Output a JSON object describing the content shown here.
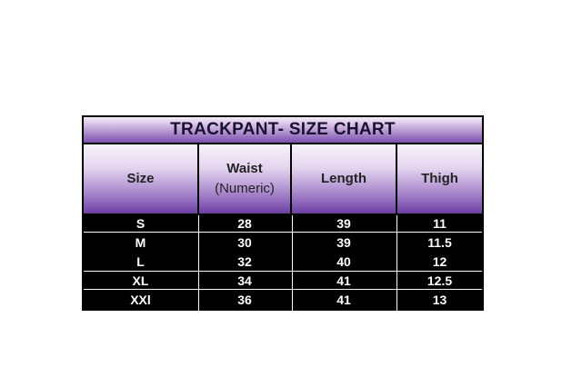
{
  "title": "TRACKPANT- SIZE CHART",
  "headers": [
    "Size",
    "Waist\n(Numeric)",
    "Length",
    "Thigh"
  ],
  "header_lines": {
    "waist_1": "Waist",
    "waist_2": "(Numeric)"
  },
  "rows": [
    [
      "S",
      "28",
      "39",
      "11"
    ],
    [
      "M",
      "30",
      "39",
      "11.5"
    ],
    [
      "L",
      "32",
      "40",
      "12"
    ],
    [
      "XL",
      "34",
      "41",
      "12.5"
    ],
    [
      "XXl",
      "36",
      "41",
      "13"
    ]
  ],
  "colors": {
    "header_top": "#f8f4fb",
    "header_bottom": "#6c3fa3",
    "body_bg": "#000000",
    "body_text": "#ffffff"
  }
}
